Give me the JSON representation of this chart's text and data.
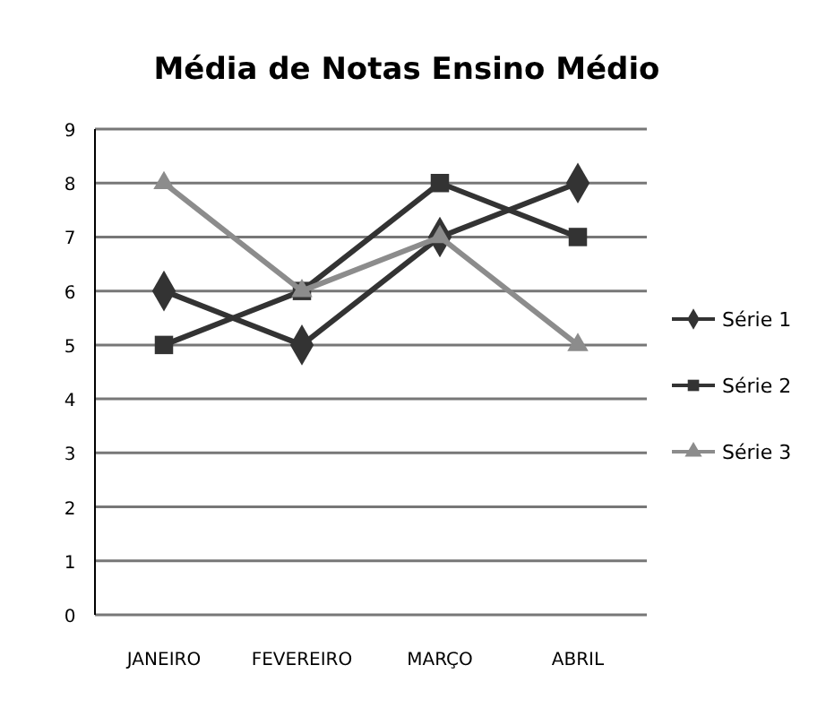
{
  "chart_data": {
    "type": "line",
    "title": "Média de Notas Ensino Médio",
    "categories": [
      "JANEIRO",
      "FEVEREIRO",
      "MARÇO",
      "ABRIL"
    ],
    "series": [
      {
        "name": "Série 1",
        "color": "#333333",
        "marker": "diamond",
        "values": [
          6,
          5,
          7,
          8
        ]
      },
      {
        "name": "Série 2",
        "color": "#333333",
        "marker": "square",
        "values": [
          5,
          6,
          8,
          7
        ]
      },
      {
        "name": "Série 3",
        "color": "#8c8c8c",
        "marker": "triangle",
        "values": [
          8,
          6,
          7,
          5
        ]
      }
    ],
    "ylim": [
      0,
      9
    ],
    "yticks": [
      0,
      1,
      2,
      3,
      4,
      5,
      6,
      7,
      8,
      9
    ],
    "grid": "y",
    "legend": "right",
    "line_style": "solid"
  }
}
